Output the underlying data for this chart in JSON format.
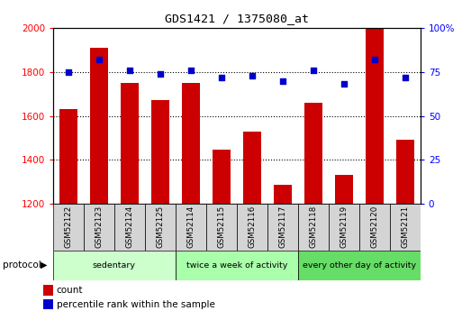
{
  "title": "GDS1421 / 1375080_at",
  "samples": [
    "GSM52122",
    "GSM52123",
    "GSM52124",
    "GSM52125",
    "GSM52114",
    "GSM52115",
    "GSM52116",
    "GSM52117",
    "GSM52118",
    "GSM52119",
    "GSM52120",
    "GSM52121"
  ],
  "counts": [
    1630,
    1910,
    1750,
    1670,
    1750,
    1445,
    1530,
    1285,
    1660,
    1330,
    2000,
    1490
  ],
  "percentiles": [
    75,
    82,
    76,
    74,
    76,
    72,
    73,
    70,
    76,
    68,
    82,
    72
  ],
  "ylim_left": [
    1200,
    2000
  ],
  "ylim_right": [
    0,
    100
  ],
  "yticks_left": [
    1200,
    1400,
    1600,
    1800,
    2000
  ],
  "yticks_right": [
    0,
    25,
    50,
    75,
    100
  ],
  "bar_color": "#cc0000",
  "dot_color": "#0000cc",
  "groups": [
    {
      "label": "sedentary",
      "start": 0,
      "end": 4,
      "color": "#ccffcc"
    },
    {
      "label": "twice a week of activity",
      "start": 4,
      "end": 8,
      "color": "#aaffaa"
    },
    {
      "label": "every other day of activity",
      "start": 8,
      "end": 12,
      "color": "#66dd66"
    }
  ],
  "protocol_label": "protocol",
  "legend_count_label": "count",
  "legend_pct_label": "percentile rank within the sample",
  "grid_color": "#000000"
}
